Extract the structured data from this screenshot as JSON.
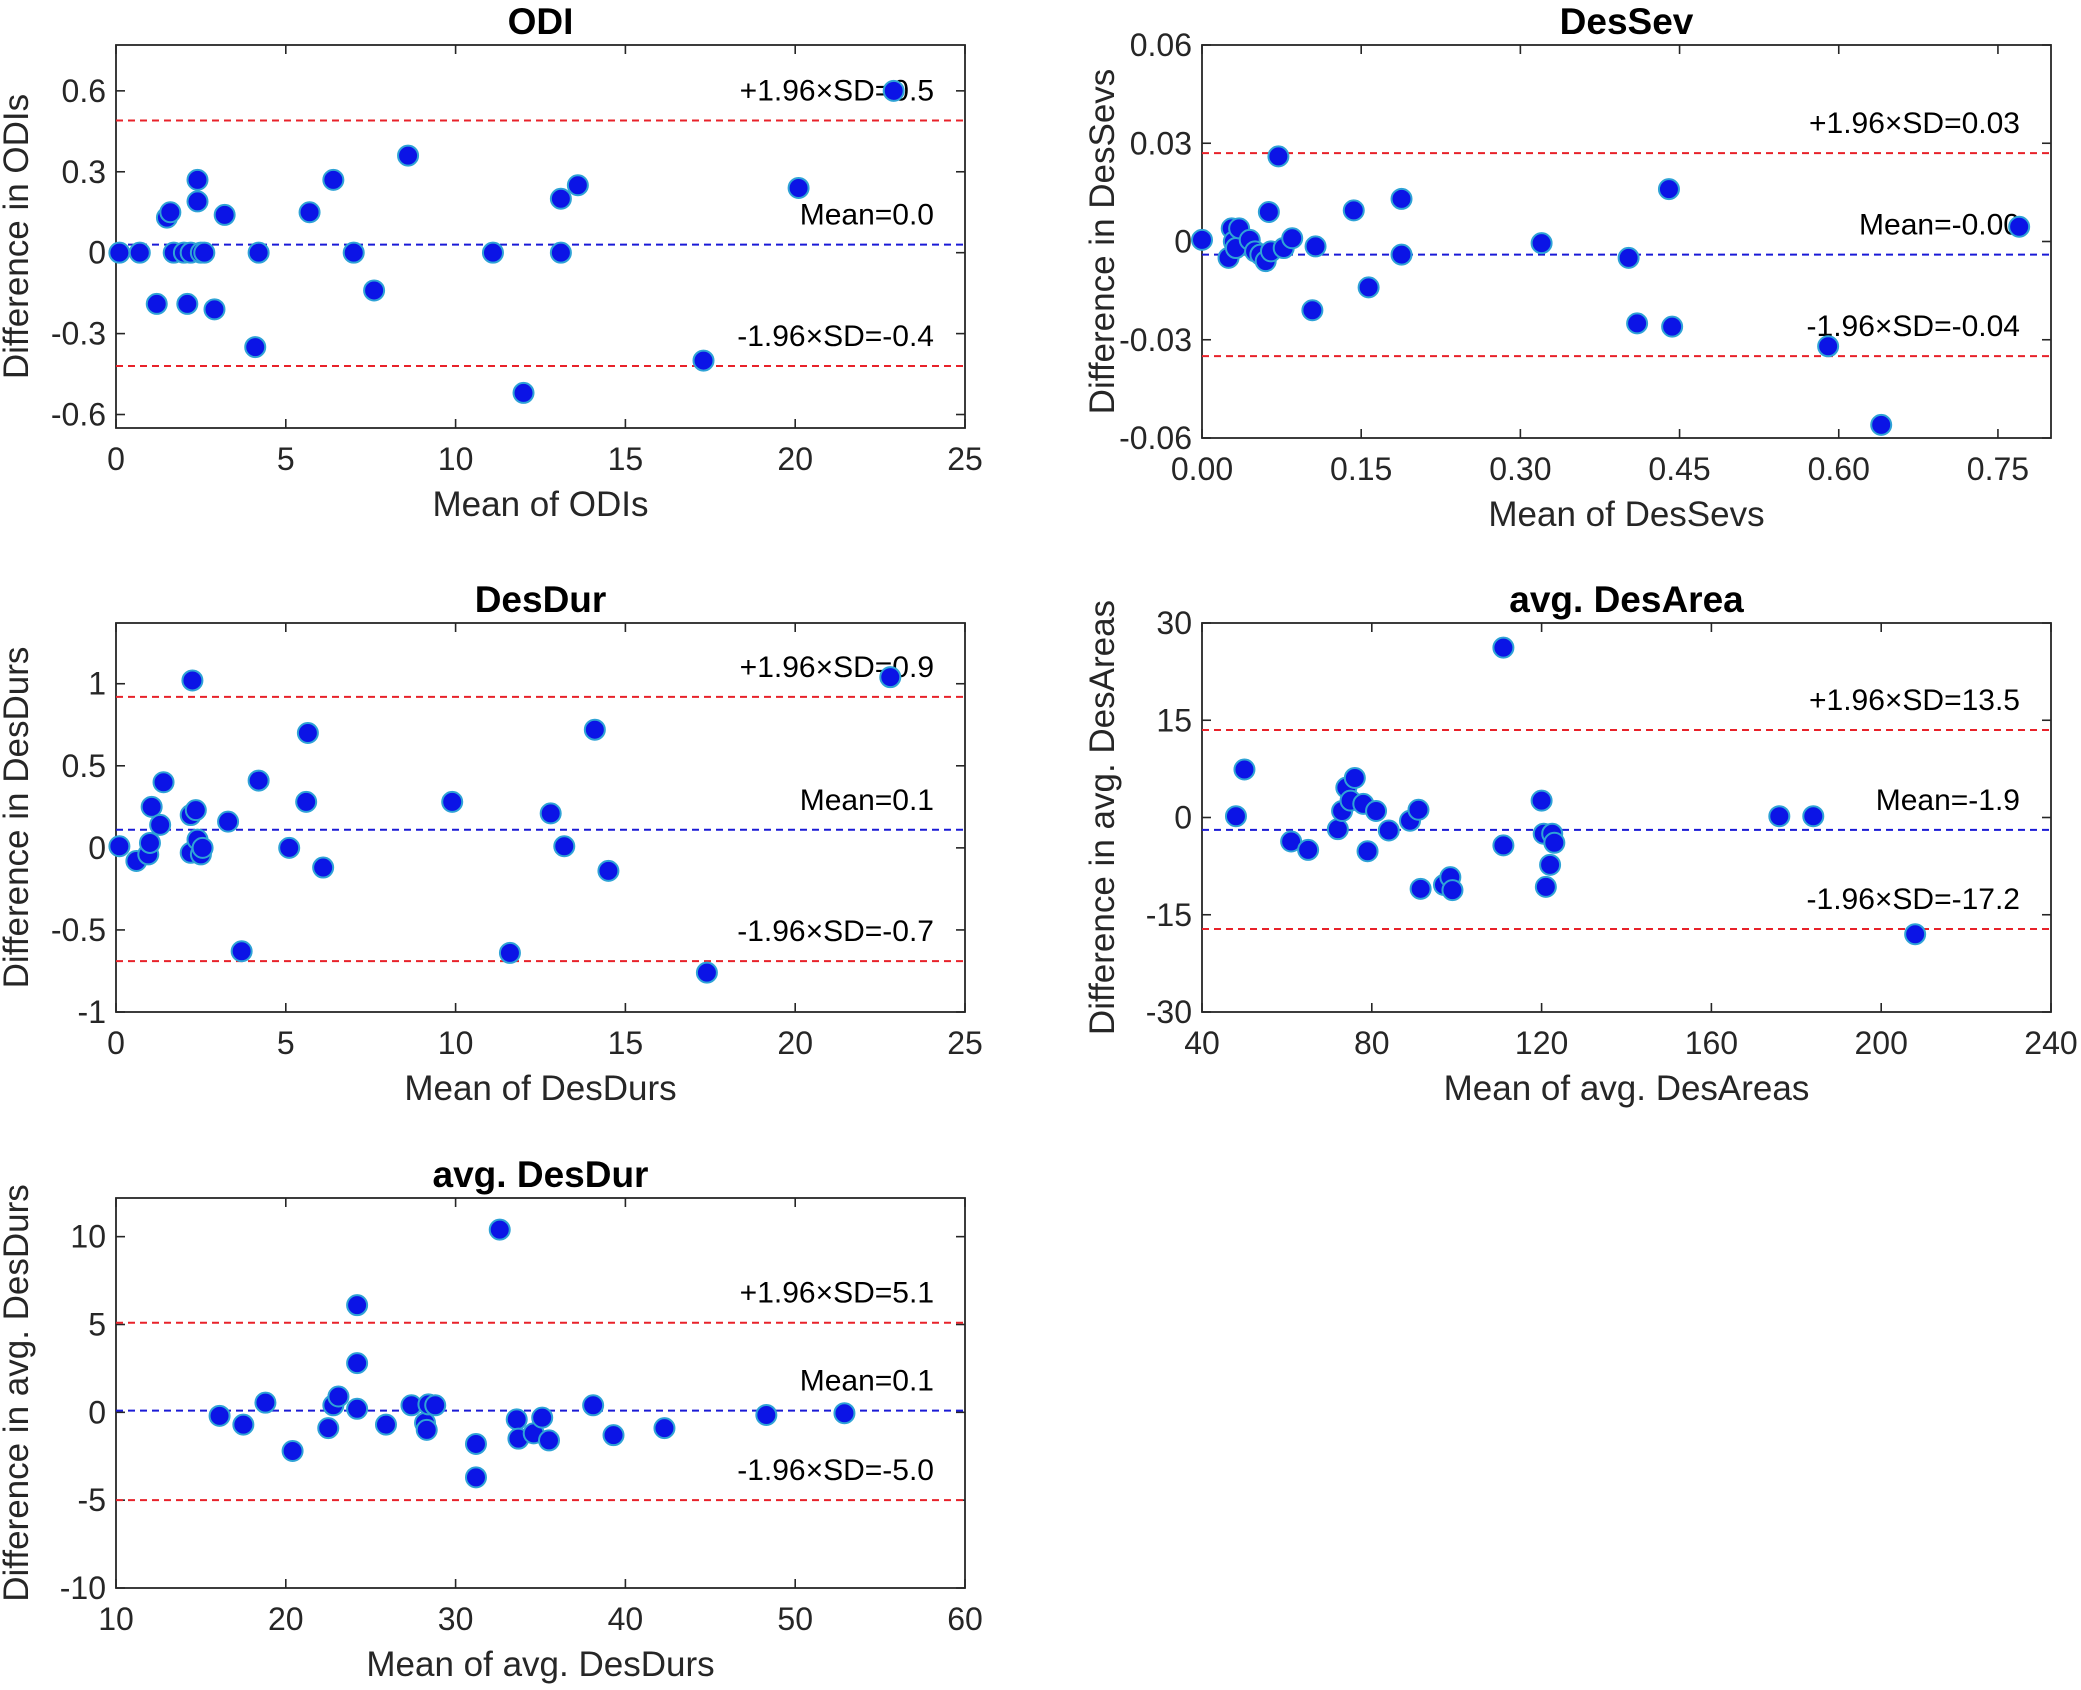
{
  "chart_data": [
    {
      "type": "scatter",
      "title": "ODI",
      "xlabel": "Mean of ODIs",
      "ylabel": "Difference in ODIs",
      "xlim": [
        0,
        25
      ],
      "ylim": [
        -0.65,
        0.77
      ],
      "xticks": [
        0,
        5,
        10,
        15,
        20,
        25
      ],
      "xtick_labels": [
        "0",
        "5",
        "10",
        "15",
        "20",
        "25"
      ],
      "yticks": [
        -0.6,
        -0.3,
        0,
        0.3,
        0.6
      ],
      "ytick_labels": [
        "-0.6",
        "-0.3",
        "0",
        "0.3",
        "0.6"
      ],
      "mean": 0.03,
      "upper": 0.49,
      "lower": -0.42,
      "mean_label": "Mean=0.0",
      "upper_label": "+1.96×SD=0.5",
      "lower_label": "-1.96×SD=-0.4",
      "label_anchor": 17.4,
      "points": [
        [
          0.1,
          0
        ],
        [
          0.7,
          0
        ],
        [
          1.2,
          -0.19
        ],
        [
          1.5,
          0.13
        ],
        [
          1.6,
          0.15
        ],
        [
          1.7,
          0
        ],
        [
          2.0,
          0
        ],
        [
          2.1,
          -0.19
        ],
        [
          2.2,
          0
        ],
        [
          2.4,
          0.27
        ],
        [
          2.4,
          0.19
        ],
        [
          2.5,
          0
        ],
        [
          2.6,
          0
        ],
        [
          2.9,
          -0.21
        ],
        [
          3.2,
          0.14
        ],
        [
          4.1,
          -0.35
        ],
        [
          4.2,
          0
        ],
        [
          5.7,
          0.15
        ],
        [
          6.4,
          0.27
        ],
        [
          7.0,
          0
        ],
        [
          7.6,
          -0.14
        ],
        [
          8.6,
          0.36
        ],
        [
          11.1,
          0
        ],
        [
          12.0,
          -0.52
        ],
        [
          13.1,
          0.2
        ],
        [
          13.1,
          0
        ],
        [
          13.6,
          0.25
        ],
        [
          17.3,
          -0.4
        ],
        [
          20.1,
          0.24
        ],
        [
          22.9,
          0.6
        ]
      ]
    },
    {
      "type": "scatter",
      "title": "DesSev",
      "xlabel": "Mean of DesSevs",
      "ylabel": "Difference in DesSevs",
      "xlim": [
        0,
        0.8
      ],
      "ylim": [
        -0.06,
        0.06
      ],
      "xticks": [
        0,
        0.15,
        0.3,
        0.45,
        0.6,
        0.75
      ],
      "xtick_labels": [
        "0.00",
        "0.15",
        "0.30",
        "0.45",
        "0.60",
        "0.75"
      ],
      "yticks": [
        -0.06,
        -0.03,
        0,
        0.03,
        0.06
      ],
      "ytick_labels": [
        "-0.06",
        "-0.03",
        "0",
        "0.03",
        "0.06"
      ],
      "mean": -0.004,
      "upper": 0.027,
      "lower": -0.035,
      "mean_label": "Mean=-0.00",
      "upper_label": "+1.96×SD=0.03",
      "lower_label": "-1.96×SD=-0.04",
      "label_anchor": 0.55,
      "points": [
        [
          0.0,
          0.0005
        ],
        [
          0.025,
          -0.005
        ],
        [
          0.028,
          0.004
        ],
        [
          0.03,
          0
        ],
        [
          0.032,
          -0.002
        ],
        [
          0.035,
          0.004
        ],
        [
          0.045,
          0.0005
        ],
        [
          0.05,
          -0.003
        ],
        [
          0.055,
          -0.004
        ],
        [
          0.06,
          -0.006
        ],
        [
          0.063,
          0.009
        ],
        [
          0.065,
          -0.003
        ],
        [
          0.072,
          0.026
        ],
        [
          0.077,
          -0.002
        ],
        [
          0.085,
          0.001
        ],
        [
          0.104,
          -0.021
        ],
        [
          0.107,
          -0.0015
        ],
        [
          0.143,
          0.0095
        ],
        [
          0.157,
          -0.014
        ],
        [
          0.188,
          0.013
        ],
        [
          0.188,
          -0.004
        ],
        [
          0.32,
          -0.0005
        ],
        [
          0.402,
          -0.005
        ],
        [
          0.41,
          -0.025
        ],
        [
          0.44,
          0.016
        ],
        [
          0.443,
          -0.026
        ],
        [
          0.59,
          -0.032
        ],
        [
          0.64,
          -0.056
        ],
        [
          0.77,
          0.0045
        ]
      ]
    },
    {
      "type": "scatter",
      "title": "DesDur",
      "xlabel": "Mean of DesDurs",
      "ylabel": "Difference in DesDurs",
      "xlim": [
        0,
        25
      ],
      "ylim": [
        -1,
        1.37
      ],
      "xticks": [
        0,
        5,
        10,
        15,
        20,
        25
      ],
      "xtick_labels": [
        "0",
        "5",
        "10",
        "15",
        "20",
        "25"
      ],
      "yticks": [
        -1,
        -0.5,
        0,
        0.5,
        1
      ],
      "ytick_labels": [
        "-1",
        "-0.5",
        "0",
        "0.5",
        "1"
      ],
      "mean": 0.11,
      "upper": 0.92,
      "lower": -0.69,
      "mean_label": "Mean=0.1",
      "upper_label": "+1.96×SD=0.9",
      "lower_label": "-1.96×SD=-0.7",
      "label_anchor": 17.4,
      "points": [
        [
          0.1,
          0.01
        ],
        [
          0.6,
          -0.08
        ],
        [
          0.95,
          -0.04
        ],
        [
          1.0,
          0.03
        ],
        [
          1.05,
          0.25
        ],
        [
          1.3,
          0.14
        ],
        [
          1.4,
          0.4
        ],
        [
          2.2,
          0.2
        ],
        [
          2.2,
          -0.03
        ],
        [
          2.25,
          1.02
        ],
        [
          2.35,
          0.23
        ],
        [
          2.4,
          0.05
        ],
        [
          2.5,
          -0.04
        ],
        [
          2.55,
          0
        ],
        [
          3.3,
          0.16
        ],
        [
          3.7,
          -0.63
        ],
        [
          4.2,
          0.41
        ],
        [
          5.1,
          0
        ],
        [
          5.6,
          0.28
        ],
        [
          5.65,
          0.7
        ],
        [
          6.1,
          -0.12
        ],
        [
          9.9,
          0.28
        ],
        [
          11.6,
          -0.64
        ],
        [
          12.8,
          0.21
        ],
        [
          13.2,
          0.01
        ],
        [
          14.1,
          0.72
        ],
        [
          14.5,
          -0.14
        ],
        [
          17.4,
          -0.76
        ],
        [
          22.8,
          1.04
        ]
      ]
    },
    {
      "type": "scatter",
      "title": "avg. DesArea",
      "xlabel": "Mean of avg. DesAreas",
      "ylabel": "Difference in avg. DesAreas",
      "xlim": [
        40,
        240
      ],
      "ylim": [
        -30,
        30
      ],
      "xticks": [
        40,
        80,
        120,
        160,
        200,
        240
      ],
      "xtick_labels": [
        "40",
        "80",
        "120",
        "160",
        "200",
        "240"
      ],
      "yticks": [
        -30,
        -15,
        0,
        15,
        30
      ],
      "ytick_labels": [
        "-30",
        "-15",
        "0",
        "15",
        "30"
      ],
      "mean": -1.9,
      "upper": 13.5,
      "lower": -17.2,
      "mean_label": "Mean=-1.9",
      "upper_label": "+1.96×SD=13.5",
      "lower_label": "-1.96×SD=-17.2",
      "label_anchor": 182,
      "points": [
        [
          48,
          0.2
        ],
        [
          50,
          7.4
        ],
        [
          61,
          -3.7
        ],
        [
          65,
          -5
        ],
        [
          72,
          -1.8
        ],
        [
          73,
          1
        ],
        [
          74,
          4.6
        ],
        [
          75,
          2.6
        ],
        [
          76,
          6.1
        ],
        [
          78,
          2.1
        ],
        [
          79,
          -5.2
        ],
        [
          81,
          1
        ],
        [
          84,
          -2
        ],
        [
          89,
          -0.5
        ],
        [
          91,
          1.2
        ],
        [
          91.5,
          -11
        ],
        [
          97,
          -10.4
        ],
        [
          98.5,
          -9.2
        ],
        [
          99,
          -11.2
        ],
        [
          111,
          26.2
        ],
        [
          111,
          -4.3
        ],
        [
          120,
          2.6
        ],
        [
          120.5,
          -2.5
        ],
        [
          121,
          -10.7
        ],
        [
          122,
          -7.3
        ],
        [
          122.5,
          -2.5
        ],
        [
          123,
          -3.9
        ],
        [
          176,
          0.2
        ],
        [
          184,
          0.2
        ],
        [
          208,
          -18
        ]
      ]
    },
    {
      "type": "scatter",
      "title": "avg. DesDur",
      "xlabel": "Mean of avg. DesDurs",
      "ylabel": "Difference in avg. DesDurs",
      "xlim": [
        10,
        60
      ],
      "ylim": [
        -10,
        12.2
      ],
      "xticks": [
        10,
        20,
        30,
        40,
        50,
        60
      ],
      "xtick_labels": [
        "10",
        "20",
        "30",
        "40",
        "50",
        "60"
      ],
      "yticks": [
        -10,
        -5,
        0,
        5,
        10
      ],
      "ytick_labels": [
        "-10",
        "-5",
        "0",
        "5",
        "10"
      ],
      "mean": 0.1,
      "upper": 5.1,
      "lower": -5.0,
      "mean_label": "Mean=0.1",
      "upper_label": "+1.96×SD=5.1",
      "lower_label": "-1.96×SD=-5.0",
      "label_anchor": 48,
      "points": [
        [
          16.1,
          -0.2
        ],
        [
          17.5,
          -0.7
        ],
        [
          18.8,
          0.55
        ],
        [
          20.4,
          -2.2
        ],
        [
          22.5,
          -0.9
        ],
        [
          22.8,
          0.4
        ],
        [
          23.1,
          0.9
        ],
        [
          24.2,
          6.1
        ],
        [
          24.2,
          2.8
        ],
        [
          24.2,
          0.2
        ],
        [
          25.9,
          -0.7
        ],
        [
          27.4,
          0.4
        ],
        [
          28.2,
          -0.6
        ],
        [
          28.3,
          -1.0
        ],
        [
          28.4,
          0.45
        ],
        [
          28.8,
          0.4
        ],
        [
          31.2,
          -1.8
        ],
        [
          31.2,
          -3.7
        ],
        [
          32.6,
          10.4
        ],
        [
          33.6,
          -0.4
        ],
        [
          33.7,
          -1.5
        ],
        [
          34.6,
          -1.2
        ],
        [
          35.1,
          -0.3
        ],
        [
          35.5,
          -1.6
        ],
        [
          38.1,
          0.4
        ],
        [
          39.3,
          -1.3
        ],
        [
          42.3,
          -0.9
        ],
        [
          48.3,
          -0.15
        ],
        [
          52.9,
          -0.05
        ]
      ]
    }
  ]
}
